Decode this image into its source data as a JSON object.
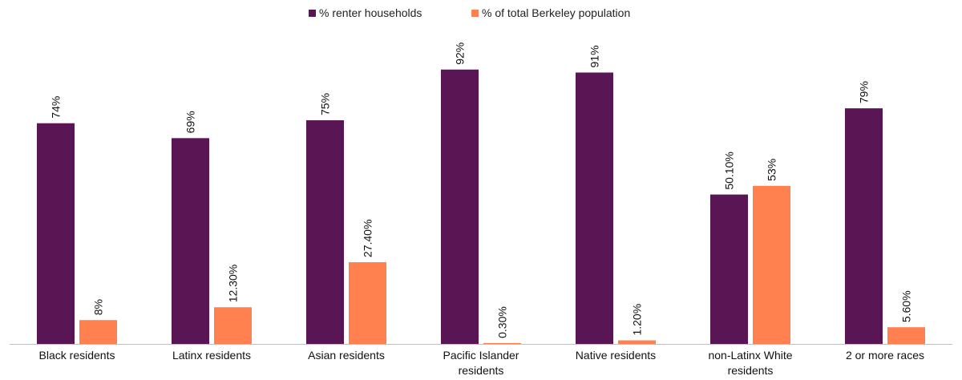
{
  "chart_data": {
    "type": "bar",
    "categories": [
      [
        "Black residents"
      ],
      [
        "Latinx residents"
      ],
      [
        "Asian residents"
      ],
      [
        "Pacific Islander",
        "residents"
      ],
      [
        "Native residents"
      ],
      [
        "non-Latinx White",
        "residents"
      ],
      [
        "2 or more races"
      ]
    ],
    "series": [
      {
        "name": "% renter households",
        "color": "#5a1555",
        "values": [
          74,
          69,
          75,
          92,
          91,
          50.1,
          79
        ],
        "labels": [
          "74%",
          "69%",
          "75%",
          "92%",
          "91%",
          "50.10%",
          "79%"
        ]
      },
      {
        "name": "% of total Berkeley population",
        "color": "#ff8150",
        "values": [
          8,
          12.3,
          27.4,
          0.3,
          1.2,
          53,
          5.6
        ],
        "labels": [
          "8%",
          "12.30%",
          "27.40%",
          "0.30%",
          "1.20%",
          "53%",
          "5.60%"
        ]
      }
    ],
    "ylim": [
      0,
      100
    ],
    "legend": "top-center",
    "grid": false,
    "axis_color": "#bfbfbf"
  }
}
